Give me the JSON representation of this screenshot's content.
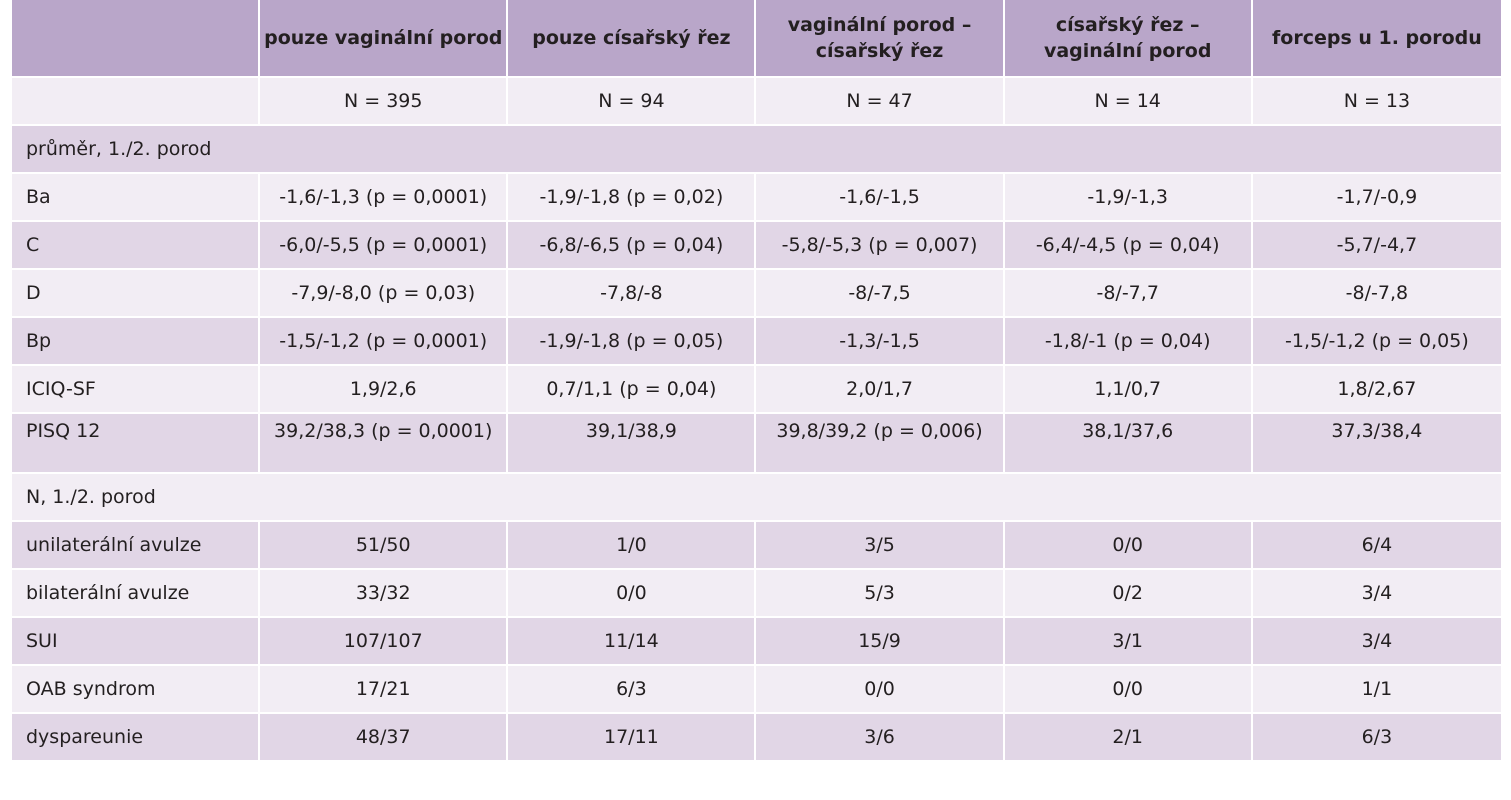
{
  "headers": [
    "",
    "pouze vaginální porod",
    "pouze císařský řez",
    "vaginální porod – císařský řez",
    "císařský řez – vaginální porod",
    "forceps u 1. porodu"
  ],
  "n_row": [
    "",
    "N = 395",
    "N = 94",
    "N = 47",
    "N = 14",
    "N = 13"
  ],
  "section1": "průměr, 1./2. porod",
  "rows1": [
    [
      "Ba",
      "-1,6/-1,3 (p = 0,0001)",
      "-1,9/-1,8 (p = 0,02)",
      "-1,6/-1,5",
      "-1,9/-1,3",
      "-1,7/-0,9"
    ],
    [
      "C",
      "-6,0/-5,5 (p = 0,0001)",
      "-6,8/-6,5 (p = 0,04)",
      "-5,8/-5,3 (p = 0,007)",
      "-6,4/-4,5 (p = 0,04)",
      "-5,7/-4,7"
    ],
    [
      "D",
      "-7,9/-8,0 (p = 0,03)",
      "-7,8/-8",
      "-8/-7,5",
      "-8/-7,7",
      "-8/-7,8"
    ],
    [
      "Bp",
      "-1,5/-1,2 (p = 0,0001)",
      "-1,9/-1,8 (p = 0,05)",
      "-1,3/-1,5",
      "-1,8/-1 (p = 0,04)",
      "-1,5/-1,2 (p = 0,05)"
    ],
    [
      "ICIQ-SF",
      "1,9/2,6",
      "0,7/1,1 (p = 0,04)",
      "2,0/1,7",
      "1,1/0,7",
      "1,8/2,67"
    ],
    [
      "PISQ 12",
      "39,2/38,3 (p = 0,0001)",
      "39,1/38,9",
      "39,8/39,2 (p = 0,006)",
      "38,1/37,6",
      "37,3/38,4"
    ]
  ],
  "section2": "N, 1./2. porod",
  "rows2": [
    [
      "unilaterální avulze",
      "51/50",
      "1/0",
      "3/5",
      "0/0",
      "6/4"
    ],
    [
      "bilaterální avulze",
      "33/32",
      "0/0",
      "5/3",
      "0/2",
      "3/4"
    ],
    [
      "SUI",
      "107/107",
      "11/14",
      "15/9",
      "3/1",
      "3/4"
    ],
    [
      "OAB syndrom",
      "17/21",
      "6/3",
      "0/0",
      "0/0",
      "1/1"
    ],
    [
      "dyspareunie",
      "48/37",
      "17/11",
      "3/6",
      "2/1",
      "6/3"
    ]
  ]
}
